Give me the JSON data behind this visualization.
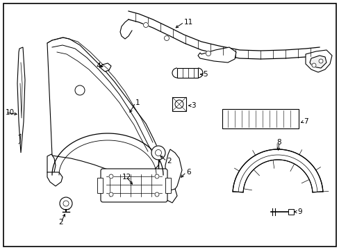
{
  "background_color": "#ffffff",
  "border_color": "#000000",
  "line_color": "#000000",
  "label_color": "#000000",
  "figsize": [
    4.89,
    3.6
  ],
  "dpi": 100
}
